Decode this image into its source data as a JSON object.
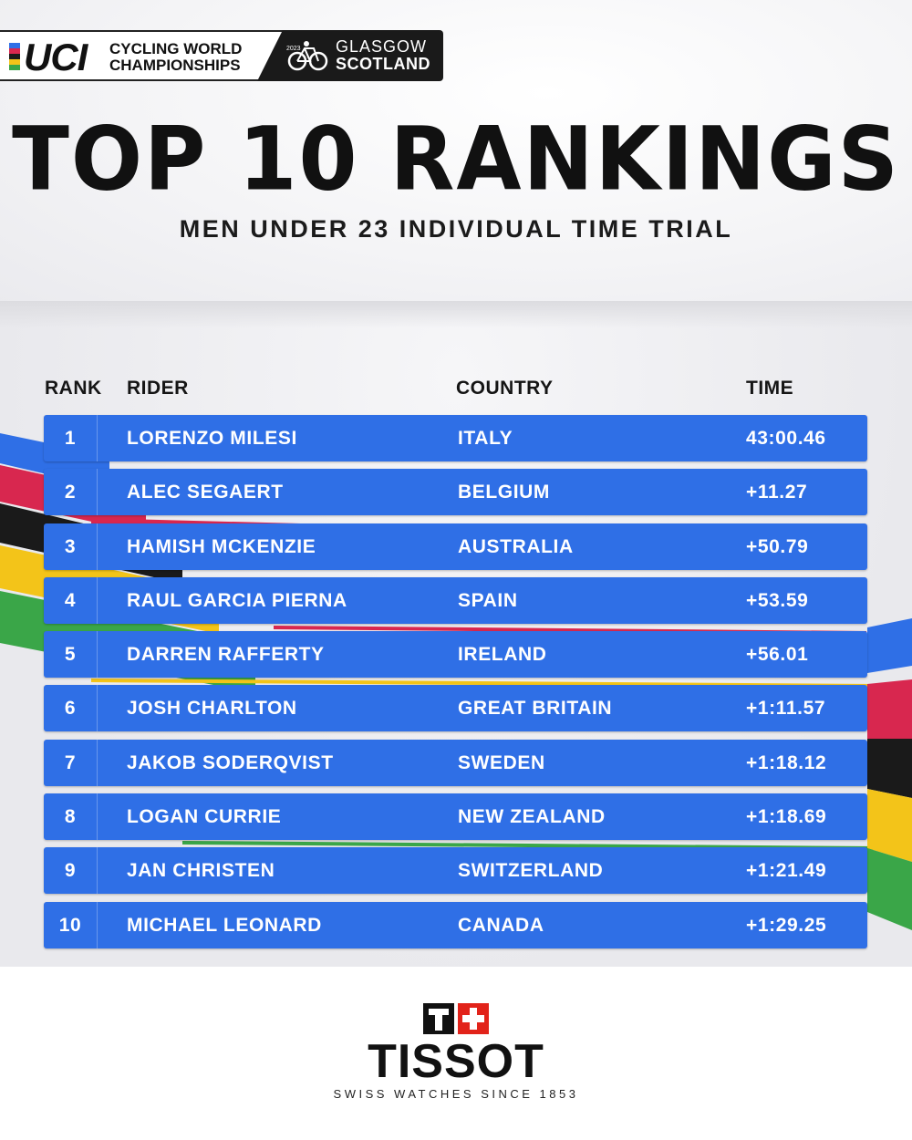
{
  "header": {
    "uci_wordmark": "UCI",
    "event_line1": "CYCLING WORLD",
    "event_line2": "CHAMPIONSHIPS",
    "year_badge": "2023",
    "host_line1": "GLASGOW",
    "host_line2": "SCOTLAND"
  },
  "title": "TOP 10 RANKINGS",
  "subtitle": "MEN UNDER 23 INDIVIDUAL TIME TRIAL",
  "table": {
    "columns": {
      "rank": "RANK",
      "rider": "RIDER",
      "country": "COUNTRY",
      "time": "TIME"
    },
    "rows": [
      {
        "rank": "1",
        "rider": "LORENZO MILESI",
        "country": "ITALY",
        "time": "43:00.46"
      },
      {
        "rank": "2",
        "rider": "ALEC SEGAERT",
        "country": "BELGIUM",
        "time": "+11.27"
      },
      {
        "rank": "3",
        "rider": "HAMISH MCKENZIE",
        "country": "AUSTRALIA",
        "time": "+50.79"
      },
      {
        "rank": "4",
        "rider": "RAUL GARCIA PIERNA",
        "country": "SPAIN",
        "time": "+53.59"
      },
      {
        "rank": "5",
        "rider": "DARREN RAFFERTY",
        "country": "IRELAND",
        "time": "+56.01"
      },
      {
        "rank": "6",
        "rider": "JOSH CHARLTON",
        "country": "GREAT BRITAIN",
        "time": "+1:11.57"
      },
      {
        "rank": "7",
        "rider": "JAKOB SODERQVIST",
        "country": "SWEDEN",
        "time": "+1:18.12"
      },
      {
        "rank": "8",
        "rider": "LOGAN CURRIE",
        "country": "NEW ZEALAND",
        "time": "+1:18.69"
      },
      {
        "rank": "9",
        "rider": "JAN CHRISTEN",
        "country": "SWITZERLAND",
        "time": "+1:21.49"
      },
      {
        "rank": "10",
        "rider": "MICHAEL LEONARD",
        "country": "CANADA",
        "time": "+1:29.25"
      }
    ]
  },
  "sponsor": {
    "name": "TISSOT",
    "tagline": "SWISS WATCHES SINCE 1853"
  },
  "colors": {
    "row_blue": "#2f6fe6",
    "stripe_blue": "#2f6fe6",
    "stripe_red": "#d8274f",
    "stripe_black": "#1a1a1a",
    "stripe_yellow": "#f3c419",
    "stripe_green": "#3aa648",
    "tissot_red": "#e2231a"
  }
}
